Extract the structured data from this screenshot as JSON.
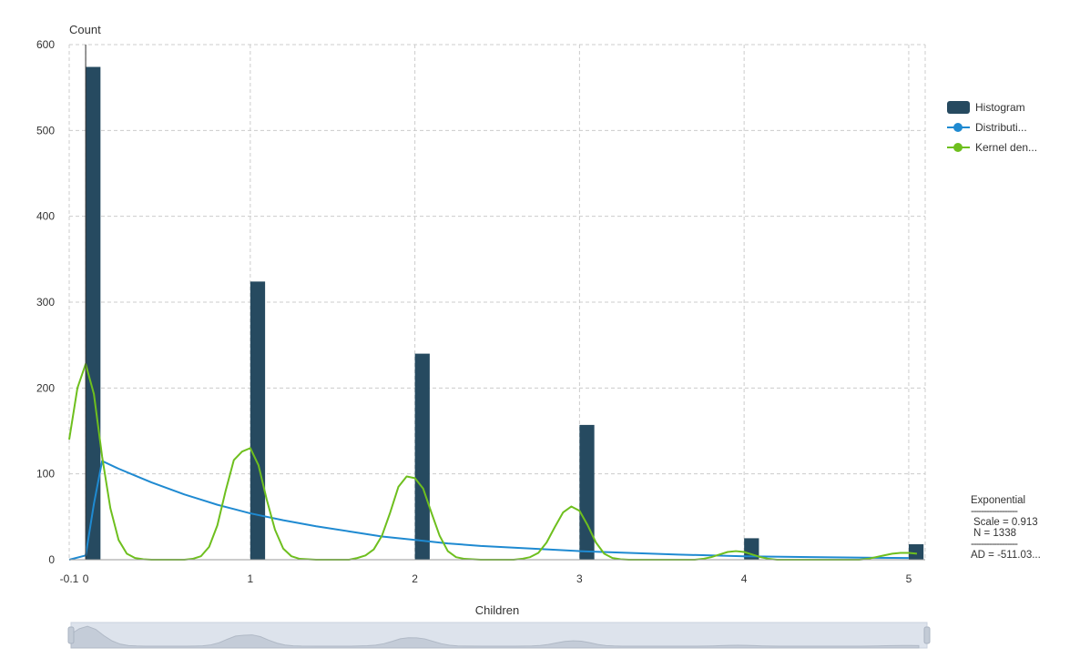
{
  "chart_data": {
    "type": "bar",
    "xlabel": "Children",
    "ylabel": "Count",
    "xlim": [
      -0.1,
      5.1
    ],
    "ylim": [
      0,
      600
    ],
    "x_ticks": [
      "-0.1",
      "0",
      "1",
      "2",
      "3",
      "4",
      "5"
    ],
    "x_tick_values": [
      -0.1,
      0,
      1,
      2,
      3,
      4,
      5
    ],
    "y_ticks": [
      "0",
      "100",
      "200",
      "300",
      "400",
      "500",
      "600"
    ],
    "grid": true,
    "legend_position": "right",
    "series": [
      {
        "name": "Histogram",
        "type": "bar",
        "color": "#264a60",
        "bars": [
          {
            "x": 0,
            "value": 574
          },
          {
            "x": 1,
            "value": 324
          },
          {
            "x": 2,
            "value": 240
          },
          {
            "x": 3,
            "value": 157
          },
          {
            "x": 4,
            "value": 25
          },
          {
            "x": 5,
            "value": 18
          }
        ]
      },
      {
        "name": "Distributi...",
        "type": "line",
        "color": "#1f8ad1",
        "x": [
          -0.1,
          0,
          0.05,
          0.1,
          0.2,
          0.3,
          0.4,
          0.5,
          0.6,
          0.7,
          0.8,
          0.9,
          1.0,
          1.2,
          1.4,
          1.6,
          1.8,
          2.0,
          2.2,
          2.4,
          2.6,
          2.8,
          3.0,
          3.3,
          3.6,
          4.0,
          4.4,
          4.8,
          5.0
        ],
        "y": [
          0,
          5,
          65,
          115,
          106,
          98,
          90,
          83,
          76,
          70,
          64,
          59,
          54,
          46,
          39,
          33,
          27,
          23,
          19,
          16,
          14,
          12,
          10,
          8,
          6,
          4,
          3,
          2.3,
          2
        ]
      },
      {
        "name": "Kernel den...",
        "type": "line",
        "color": "#6ebf1e",
        "x": [
          -0.1,
          -0.05,
          0,
          0.05,
          0.1,
          0.15,
          0.2,
          0.25,
          0.3,
          0.35,
          0.4,
          0.5,
          0.6,
          0.65,
          0.7,
          0.75,
          0.8,
          0.85,
          0.9,
          0.95,
          1.0,
          1.05,
          1.1,
          1.15,
          1.2,
          1.25,
          1.3,
          1.4,
          1.5,
          1.6,
          1.65,
          1.7,
          1.75,
          1.8,
          1.85,
          1.9,
          1.95,
          2.0,
          2.05,
          2.1,
          2.15,
          2.2,
          2.25,
          2.3,
          2.4,
          2.5,
          2.6,
          2.65,
          2.7,
          2.75,
          2.8,
          2.85,
          2.9,
          2.95,
          3.0,
          3.05,
          3.1,
          3.15,
          3.2,
          3.25,
          3.3,
          3.4,
          3.5,
          3.6,
          3.7,
          3.75,
          3.8,
          3.85,
          3.9,
          3.95,
          4.0,
          4.05,
          4.1,
          4.15,
          4.2,
          4.3,
          4.4,
          4.6,
          4.7,
          4.75,
          4.8,
          4.85,
          4.9,
          4.95,
          5.0,
          5.05
        ],
        "y": [
          140,
          200,
          228,
          193,
          120,
          60,
          23,
          7,
          2,
          0.5,
          0,
          0,
          0,
          1,
          4,
          15,
          40,
          80,
          116,
          126,
          130,
          110,
          70,
          35,
          13,
          4,
          1,
          0,
          0,
          0,
          2,
          5,
          12,
          28,
          55,
          85,
          97,
          95,
          83,
          55,
          28,
          10,
          3,
          1,
          0,
          0,
          0,
          1,
          3,
          8,
          20,
          38,
          55,
          62,
          57,
          40,
          20,
          7,
          2,
          0.5,
          0,
          0,
          0,
          0,
          0,
          1,
          3,
          6,
          9,
          10,
          9,
          6,
          3,
          1,
          0,
          0,
          0,
          0,
          0,
          1,
          3,
          5,
          7,
          8,
          8,
          7
        ]
      }
    ],
    "annotations": {
      "dist_name": "Exponential",
      "separator": "------------------",
      "scale": "Scale = 0.913",
      "n": "N = 1338",
      "ad": "AD = -511.03..."
    }
  },
  "legend": [
    {
      "label": "Histogram",
      "kind": "rect",
      "color": "#264a60"
    },
    {
      "label": "Distributi...",
      "kind": "line",
      "color": "#1f8ad1"
    },
    {
      "label": "Kernel den...",
      "kind": "line",
      "color": "#6ebf1e"
    }
  ]
}
